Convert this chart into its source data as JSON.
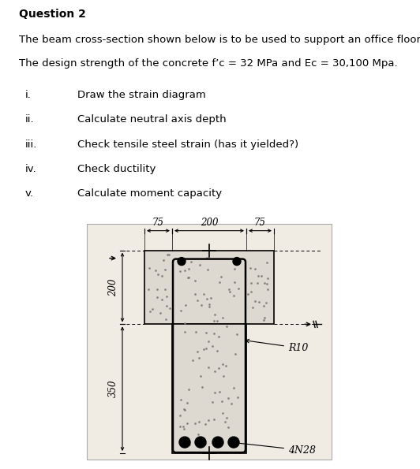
{
  "title": "Question 2",
  "line1": "The beam cross-section shown below is to be used to support an office floor.",
  "line2": "The design strength of the concrete f’c = 32 MPa and Ec = 30,100 Mpa.",
  "items": [
    [
      "i.",
      "Draw the strain diagram"
    ],
    [
      "ii.",
      "Calculate neutral axis depth"
    ],
    [
      "iii.",
      "Check tensile steel strain (has it yielded?)"
    ],
    [
      "iv.",
      "Check ductility"
    ],
    [
      "v.",
      "Calculate moment capacity"
    ]
  ],
  "bg_color": "#ffffff",
  "text_color": "#000000",
  "dim_75_left": "75",
  "dim_200": "200",
  "dim_75_right": "75",
  "dim_200_vert": "200",
  "dim_350_vert": "350",
  "label_R10": "R10",
  "label_4N28": "4N28",
  "drawing_bg": "#f0ece4",
  "section_fill": "#ddd9d0"
}
